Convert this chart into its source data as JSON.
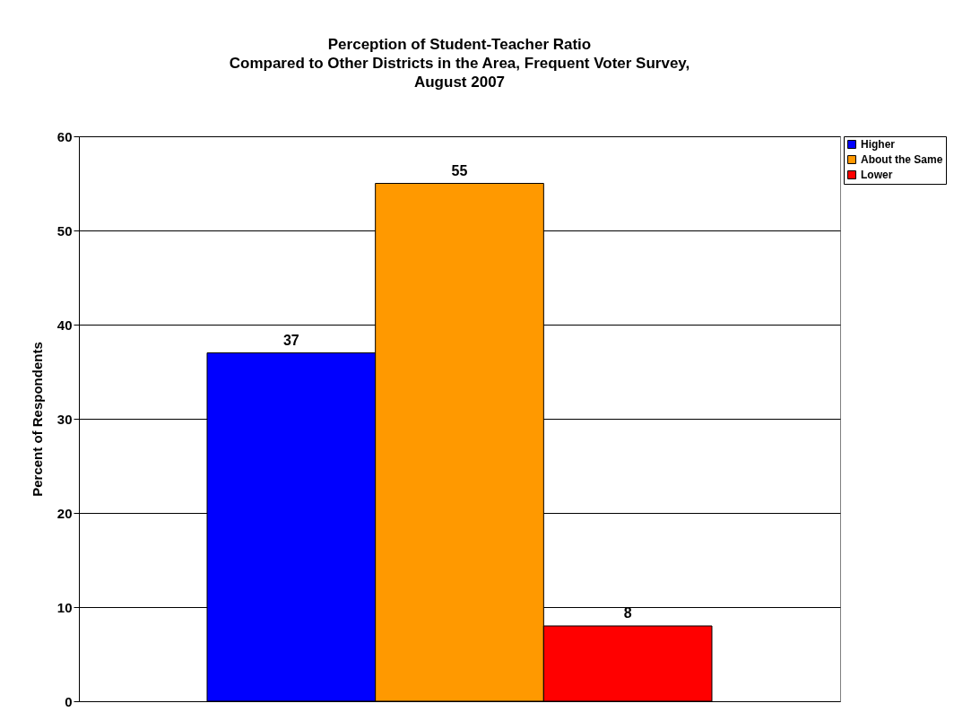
{
  "chart_data": {
    "type": "bar",
    "title": [
      "Perception of Student-Teacher Ratio",
      "Compared to Other Districts in the Area, Frequent Voter Survey,",
      "August 2007"
    ],
    "ylabel": "Percent of Respondents",
    "categories": [
      null
    ],
    "series": [
      {
        "name": "Higher",
        "color": "#0000ff",
        "values": [
          37
        ]
      },
      {
        "name": "About the Same",
        "color": "#ff9900",
        "values": [
          55
        ]
      },
      {
        "name": "Lower",
        "color": "#ff0000",
        "values": [
          8
        ]
      }
    ],
    "ylim": [
      0,
      60
    ],
    "yticks": [
      0,
      10,
      20,
      30,
      40,
      50,
      60
    ],
    "grid": "y",
    "legend": "right",
    "data_labels": true
  }
}
